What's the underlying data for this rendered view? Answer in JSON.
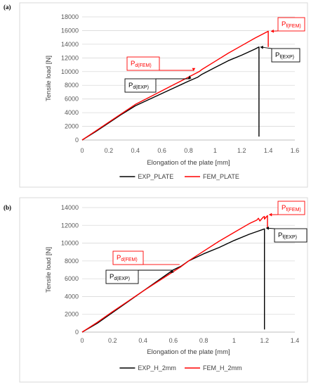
{
  "chart_data": [
    {
      "panel_label": "(a)",
      "type": "line",
      "xlabel": "Elongation of the plate [mm]",
      "ylabel": "Tensile load [N]",
      "xlim": [
        0,
        1.6
      ],
      "ylim": [
        0,
        18000
      ],
      "xticks": [
        0,
        0.2,
        0.4,
        0.6,
        0.8,
        1,
        1.2,
        1.4,
        1.6
      ],
      "yticks": [
        0,
        2000,
        4000,
        6000,
        8000,
        10000,
        12000,
        14000,
        16000,
        18000
      ],
      "grid": "horizontal",
      "legend": "bottom",
      "series": [
        {
          "name": "EXP_PLATE",
          "color": "#000000",
          "points": [
            [
              0,
              0
            ],
            [
              0.1,
              1200
            ],
            [
              0.2,
              2500
            ],
            [
              0.3,
              3800
            ],
            [
              0.4,
              5000
            ],
            [
              0.5,
              5900
            ],
            [
              0.6,
              6800
            ],
            [
              0.7,
              7700
            ],
            [
              0.8,
              8600
            ],
            [
              0.87,
              9200
            ],
            [
              0.9,
              9600
            ],
            [
              1.0,
              10600
            ],
            [
              1.1,
              11600
            ],
            [
              1.2,
              12400
            ],
            [
              1.3,
              13300
            ],
            [
              1.33,
              13600
            ],
            [
              1.33,
              500
            ]
          ]
        },
        {
          "name": "FEM_PLATE",
          "color": "#ff0000",
          "points": [
            [
              0,
              0
            ],
            [
              0.1,
              1300
            ],
            [
              0.2,
              2600
            ],
            [
              0.3,
              3900
            ],
            [
              0.4,
              5200
            ],
            [
              0.5,
              6200
            ],
            [
              0.6,
              7200
            ],
            [
              0.7,
              8200
            ],
            [
              0.8,
              9200
            ],
            [
              0.88,
              10000
            ],
            [
              0.9,
              10300
            ],
            [
              1.0,
              11500
            ],
            [
              1.1,
              12700
            ],
            [
              1.2,
              13800
            ],
            [
              1.3,
              14900
            ],
            [
              1.4,
              15900
            ],
            [
              1.4,
              13600
            ]
          ]
        }
      ],
      "annotations": [
        {
          "main": "P",
          "sub": "d(FEM)",
          "color": "#ff0000",
          "target": [
            0.86,
            10100
          ]
        },
        {
          "main": "P",
          "sub": "d(EXP)",
          "color": "#000000",
          "target": [
            0.83,
            9400
          ]
        },
        {
          "main": "P",
          "sub": "f(FEM)",
          "color": "#ff0000",
          "target": [
            1.42,
            15900
          ]
        },
        {
          "main": "P",
          "sub": "f(EXP)",
          "color": "#000000",
          "target": [
            1.34,
            13600
          ]
        }
      ]
    },
    {
      "panel_label": "(b)",
      "type": "line",
      "xlabel": "Elongation of the plate [mm]",
      "ylabel": "Tensile load [N]",
      "xlim": [
        0,
        1.4
      ],
      "ylim": [
        0,
        14000
      ],
      "xticks": [
        0,
        0.2,
        0.4,
        0.6,
        0.8,
        1,
        1.2,
        1.4
      ],
      "yticks": [
        0,
        2000,
        4000,
        6000,
        8000,
        10000,
        12000,
        14000
      ],
      "grid": "horizontal",
      "legend": "bottom",
      "series": [
        {
          "name": "EXP_H_2mm",
          "color": "#000000",
          "points": [
            [
              0,
              0
            ],
            [
              0.1,
              1000
            ],
            [
              0.2,
              2200
            ],
            [
              0.3,
              3400
            ],
            [
              0.4,
              4600
            ],
            [
              0.5,
              5800
            ],
            [
              0.6,
              7000
            ],
            [
              0.65,
              7400
            ],
            [
              0.7,
              8000
            ],
            [
              0.8,
              8800
            ],
            [
              0.9,
              9500
            ],
            [
              1.0,
              10300
            ],
            [
              1.1,
              11000
            ],
            [
              1.15,
              11300
            ],
            [
              1.2,
              11600
            ],
            [
              1.2,
              300
            ]
          ]
        },
        {
          "name": "FEM_H_2mm",
          "color": "#ff0000",
          "points": [
            [
              0,
              0
            ],
            [
              0.1,
              1100
            ],
            [
              0.2,
              2300
            ],
            [
              0.3,
              3450
            ],
            [
              0.4,
              4600
            ],
            [
              0.5,
              5700
            ],
            [
              0.6,
              6800
            ],
            [
              0.65,
              7350
            ],
            [
              0.7,
              8000
            ],
            [
              0.8,
              9100
            ],
            [
              0.9,
              10200
            ],
            [
              1.0,
              11200
            ],
            [
              1.1,
              12200
            ],
            [
              1.15,
              12600
            ],
            [
              1.16,
              12800
            ],
            [
              1.17,
              12500
            ],
            [
              1.19,
              12900
            ],
            [
              1.2,
              13000
            ],
            [
              1.2,
              12700
            ],
            [
              1.22,
              13100
            ],
            [
              1.22,
              11700
            ]
          ]
        }
      ],
      "annotations": [
        {
          "main": "P",
          "sub": "d(FEM)",
          "color": "#ff0000",
          "target": [
            0.66,
            7600
          ]
        },
        {
          "main": "P",
          "sub": "d(EXP)",
          "color": "#000000",
          "target": [
            0.61,
            7000
          ]
        },
        {
          "main": "P",
          "sub": "f(FEM)",
          "color": "#ff0000",
          "target": [
            1.23,
            13200
          ]
        },
        {
          "main": "P",
          "sub": "f(EXP)",
          "color": "#000000",
          "target": [
            1.21,
            11700
          ]
        }
      ]
    }
  ]
}
